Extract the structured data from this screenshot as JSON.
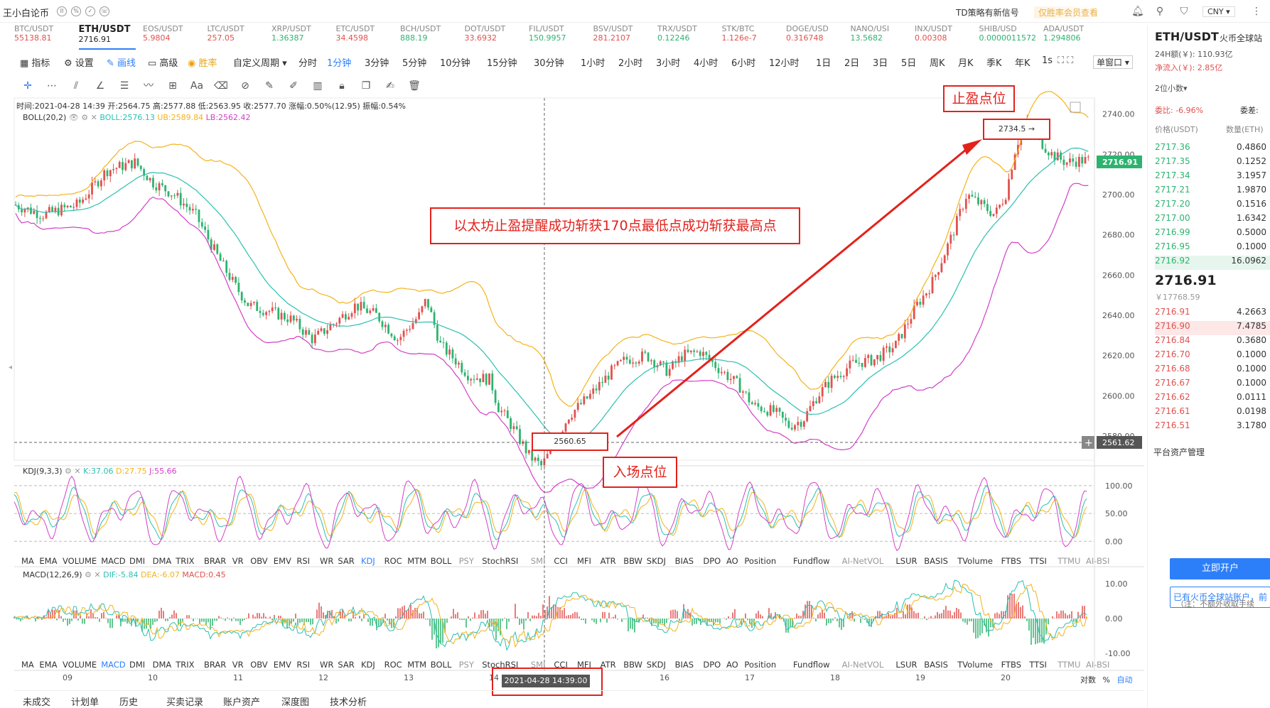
{
  "topbar": {
    "brand": "王小白论币",
    "signal_text": "TD策略有新信号",
    "vip_text": "仅胜率会员查看",
    "currency": "CNY ▾"
  },
  "tickers": [
    {
      "pair": "BTC/USDT",
      "price": "55138.81",
      "color": "#e0514e"
    },
    {
      "pair": "ETH/USDT",
      "price": "2716.91",
      "color": "#222",
      "active": true
    },
    {
      "pair": "EOS/USDT",
      "price": "5.9804",
      "color": "#e0514e"
    },
    {
      "pair": "LTC/USDT",
      "price": "257.05",
      "color": "#e0514e"
    },
    {
      "pair": "XRP/USDT",
      "price": "1.36387",
      "color": "#2db36f"
    },
    {
      "pair": "ETC/USDT",
      "price": "34.4598",
      "color": "#e0514e"
    },
    {
      "pair": "BCH/USDT",
      "price": "888.19",
      "color": "#2db36f"
    },
    {
      "pair": "DOT/USDT",
      "price": "33.6932",
      "color": "#e0514e"
    },
    {
      "pair": "FIL/USDT",
      "price": "150.9957",
      "color": "#2db36f"
    },
    {
      "pair": "BSV/USDT",
      "price": "281.2107",
      "color": "#e0514e"
    },
    {
      "pair": "TRX/USDT",
      "price": "0.12246",
      "color": "#2db36f"
    },
    {
      "pair": "STK/BTC",
      "price": "1.126e-7",
      "color": "#e0514e"
    },
    {
      "pair": "DOGE/USD",
      "price": "0.316748",
      "color": "#e0514e"
    },
    {
      "pair": "NANO/USI",
      "price": "13.5682",
      "color": "#2db36f"
    },
    {
      "pair": "INX/USDT",
      "price": "0.00308",
      "color": "#e0514e"
    },
    {
      "pair": "SHIB/USD",
      "price": "0.0000011572",
      "color": "#2db36f"
    },
    {
      "pair": "ADA/USDT",
      "price": "1.294806",
      "color": "#2db36f"
    }
  ],
  "toolbar1": {
    "indicator": "指标",
    "settings": "设置",
    "draw": "画线",
    "advanced": "高级",
    "winrate": "胜率",
    "custom_period": "自定义周期 ▾",
    "periods": [
      "分时",
      "1分钟",
      "3分钟",
      "5分钟",
      "10分钟",
      "15分钟",
      "30分钟",
      "1小时",
      "2小时",
      "3小时",
      "4小时",
      "6小时",
      "12小时",
      "1日",
      "2日",
      "3日",
      "5日",
      "周K",
      "月K",
      "季K",
      "年K"
    ],
    "active_period": "1分钟",
    "interval": "1s",
    "window": "单窗口 ▾"
  },
  "info": {
    "line": "时间:2021-04-28 14:39  开:2564.75  高:2577.88  低:2563.95  收:2577.70  涨幅:0.50%(12.95)  振幅:0.54%",
    "boll_label": "BOLL(20,2)",
    "boll_mid": "BOLL:2576.13",
    "boll_ub": "UB:2589.84",
    "boll_lb": "LB:2562.42"
  },
  "price_axis": [
    "2740.00",
    "2720.00",
    "2700.00",
    "2680.00",
    "2660.00",
    "2640.00",
    "2620.00",
    "2600.00",
    "2580.00"
  ],
  "current_price_tag": "2716.91",
  "cursor_price_tag": "2561.62",
  "low_marker": "2560.65",
  "high_marker": "2734.5 →",
  "kdj": {
    "label": "KDJ(9,3,3)",
    "k": "K:37.06",
    "d": "D:27.75",
    "j": "J:55.66",
    "axis": [
      "100.00",
      "50.00",
      "0.00"
    ]
  },
  "macd": {
    "label": "MACD(12,26,9)",
    "dif": "DIF:-5.84",
    "dea": "DEA:-6.07",
    "macd": "MACD:0.45",
    "axis": [
      "10.00",
      "0.00",
      "-10.00"
    ]
  },
  "indicator_tabs": [
    "MA",
    "EMA",
    "VOLUME",
    "MACD",
    "DMI",
    "DMA",
    "TRIX",
    "BRAR",
    "VR",
    "OBV",
    "EMV",
    "RSI",
    "WR",
    "SAR",
    "KDJ",
    "ROC",
    "MTM",
    "BOLL",
    "PSY",
    "StochRSI",
    "SMI",
    "CCI",
    "MFI",
    "ATR",
    "BBW",
    "SKDJ",
    "BIAS",
    "DPO",
    "AO",
    "Position",
    "Fundflow",
    "AI-NetVOL",
    "LSUR",
    "BASIS",
    "TVolume",
    "FTBS",
    "TTSI",
    "TTMU",
    "AI-BSI"
  ],
  "time_axis": [
    "09",
    "10",
    "11",
    "12",
    "13",
    "14",
    "15",
    "16",
    "17",
    "18",
    "19",
    "20"
  ],
  "cursor_time": "2021-04-28 14:39:00",
  "axis_options": {
    "log": "对数",
    "percent": "%",
    "auto": "自动"
  },
  "annotations": {
    "main": "以太坊止盈提醒成功斩获170点最低点成功斩获最高点",
    "take_profit": "止盈点位",
    "entry": "入场点位"
  },
  "right_panel": {
    "pair": "ETH/USDT",
    "exchange": "火币全球站",
    "vol_24h": "24H额(￥): 110.93亿",
    "net_inflow": "净流入(￥): 2.85亿",
    "decimal": "2位小数▾",
    "commit_ratio": "委比: -6.96%",
    "commit_diff": "委差:",
    "col_price": "价格(USDT)",
    "col_qty": "数量(ETH)",
    "bids_top": [
      {
        "price": "2717.36",
        "qty": "0.4860"
      },
      {
        "price": "2717.35",
        "qty": "0.1252"
      },
      {
        "price": "2717.34",
        "qty": "3.1957"
      },
      {
        "price": "2717.21",
        "qty": "1.9870"
      },
      {
        "price": "2717.20",
        "qty": "0.1516"
      },
      {
        "price": "2717.00",
        "qty": "1.6342"
      },
      {
        "price": "2716.99",
        "qty": "0.5000"
      },
      {
        "price": "2716.95",
        "qty": "0.1000"
      },
      {
        "price": "2716.92",
        "qty": "16.0962"
      }
    ],
    "last_price": "2716.91",
    "last_cny": "￥17768.59",
    "asks": [
      {
        "price": "2716.91",
        "qty": "4.2663"
      },
      {
        "price": "2716.90",
        "qty": "7.4785"
      },
      {
        "price": "2716.84",
        "qty": "0.3680"
      },
      {
        "price": "2716.70",
        "qty": "0.1000"
      },
      {
        "price": "2716.68",
        "qty": "0.1000"
      },
      {
        "price": "2716.67",
        "qty": "0.1000"
      },
      {
        "price": "2716.62",
        "qty": "0.0111"
      },
      {
        "price": "2716.61",
        "qty": "0.0198"
      },
      {
        "price": "2716.51",
        "qty": "3.1780"
      }
    ],
    "asset_mgmt": "平台资产管理",
    "open_btn": "立即开户",
    "account_btn": "已有火币全球站账户，前",
    "note": "（注：不额外收取手续"
  },
  "bottom_tabs": [
    "未成交",
    "计划单",
    "历史",
    "买卖记录",
    "账户资产",
    "深度图",
    "技术分析"
  ],
  "colors": {
    "up": "#e0514e",
    "down": "#2db36f",
    "boll_up": "#f5b21b",
    "boll_mid": "#2bbfb0",
    "boll_low": "#d33fc6",
    "accent": "#2d7ff9",
    "annot": "#e3211b"
  }
}
